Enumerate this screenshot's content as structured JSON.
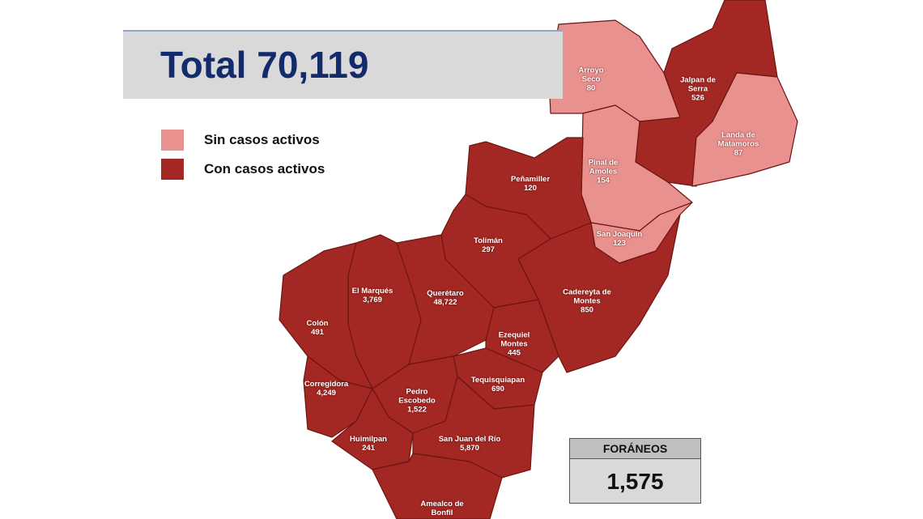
{
  "header": {
    "title": "Total 70,119"
  },
  "legend": [
    {
      "label": "Sin casos activos",
      "color": "#e8918e"
    },
    {
      "label": "Con casos activos",
      "color": "#a32722"
    }
  ],
  "municipalities": [
    {
      "name": "Arroyo Seco",
      "value": "80",
      "color": "#e8918e"
    },
    {
      "name": "Jalpan de Serra",
      "value": "526",
      "color": "#a32722"
    },
    {
      "name": "Landa de Matamoros",
      "value": "87",
      "color": "#e8918e"
    },
    {
      "name": "Pinal de Amoles",
      "value": "154",
      "color": "#e8918e"
    },
    {
      "name": "San Joaquín",
      "value": "123",
      "color": "#e8918e"
    },
    {
      "name": "Peñamiller",
      "value": "120",
      "color": "#a32722"
    },
    {
      "name": "Tolimán",
      "value": "297",
      "color": "#a32722"
    },
    {
      "name": "Cadereyta de Montes",
      "value": "850",
      "color": "#a32722"
    },
    {
      "name": "El Marqués",
      "value": "3,769",
      "color": "#a32722"
    },
    {
      "name": "Querétaro",
      "value": "48,722",
      "color": "#a32722"
    },
    {
      "name": "Colón",
      "value": "491",
      "color": "#a32722"
    },
    {
      "name": "Ezequiel Montes",
      "value": "445",
      "color": "#a32722"
    },
    {
      "name": "Tequisquiapan",
      "value": "690",
      "color": "#a32722"
    },
    {
      "name": "Corregidora",
      "value": "4,249",
      "color": "#a32722"
    },
    {
      "name": "Pedro Escobedo",
      "value": "1,522",
      "color": "#a32722"
    },
    {
      "name": "Huimilpan",
      "value": "241",
      "color": "#a32722"
    },
    {
      "name": "San Juan del Río",
      "value": "5,870",
      "color": "#a32722"
    },
    {
      "name": "Amealco de Bonfil",
      "color": "#a32722"
    }
  ],
  "foraneos": {
    "title": "FORÁNEOS",
    "value": "1,575"
  }
}
